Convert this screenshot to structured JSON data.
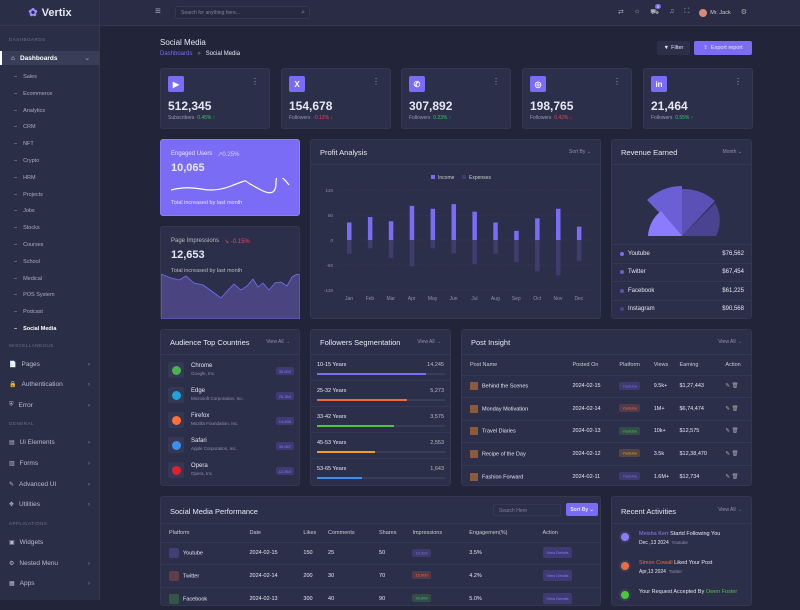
{
  "app": {
    "name": "Vertix"
  },
  "sidebar": {
    "sections": [
      "DASHBOARDS",
      "MISCELLANEOUS",
      "GENERAL",
      "APPLICATIONS"
    ],
    "dashboards_label": "Dashboards",
    "sub_items": [
      "Sales",
      "Ecommerce",
      "Analytics",
      "CRM",
      "NFT",
      "Crypto",
      "HRM",
      "Projects",
      "Jobs",
      "Stocks",
      "Courses",
      "School",
      "Medical",
      "POS System",
      "Podcast",
      "Social Media"
    ],
    "misc": [
      "Pages",
      "Authentication",
      "Error"
    ],
    "general": [
      "Ui Elements",
      "Forms",
      "Advanced UI",
      "Utilities"
    ],
    "apps": [
      "Widgets",
      "Nested Menu",
      "Apps"
    ]
  },
  "topbar": {
    "search_placeholder": "Search for anything here...",
    "cart_count": "5",
    "user": "Mr. Jack"
  },
  "page": {
    "title": "Social Media",
    "breadcrumb": [
      "Dashboards",
      "Social Media"
    ],
    "filter": "Filter",
    "export": "Export report"
  },
  "stats": [
    {
      "icon": "youtube-icon",
      "glyph": "▶",
      "value": "512,345",
      "label": "Subscribers",
      "change": "0.45% ↑",
      "dir": "up"
    },
    {
      "icon": "x-twitter-icon",
      "glyph": "X",
      "value": "154,678",
      "label": "Followers",
      "change": "-0.12% ↓",
      "dir": "down"
    },
    {
      "icon": "messenger-icon",
      "glyph": "✆",
      "value": "307,892",
      "label": "Followers",
      "change": "0.23% ↑",
      "dir": "up"
    },
    {
      "icon": "instagram-icon",
      "glyph": "◎",
      "value": "198,765",
      "label": "Followers",
      "change": "0.42% ↓",
      "dir": "down"
    },
    {
      "icon": "linkedin-icon",
      "glyph": "in",
      "value": "21,464",
      "label": "Followers",
      "change": "0.55% ↑",
      "dir": "up"
    }
  ],
  "engaged": {
    "title": "Engaged Users",
    "change": "↗0.25%",
    "value": "10,065",
    "note": "Total increased by last month"
  },
  "impressions": {
    "title": "Page Impressions",
    "change": "↘ -0.15%",
    "value": "12,653",
    "note": "Total increased by last month"
  },
  "chart_data": {
    "type": "bar",
    "title": "Profit Analysis",
    "sort": "Sort By",
    "categories": [
      "Jan",
      "Feb",
      "Mar",
      "Apr",
      "May",
      "Jun",
      "Jul",
      "Aug",
      "Sep",
      "Oct",
      "Nov",
      "Dec"
    ],
    "series": [
      {
        "name": "Income",
        "color": "#7b6cf6",
        "values": [
          42,
          55,
          45,
          82,
          75,
          86,
          68,
          42,
          22,
          52,
          75,
          32
        ]
      },
      {
        "name": "Expenses",
        "color": "#403d6e",
        "values": [
          -33,
          -20,
          -43,
          -63,
          -20,
          -32,
          -58,
          -33,
          -53,
          -75,
          -85,
          -50
        ]
      }
    ],
    "yticks": [
      "120",
      "60",
      "0",
      "-60",
      "-120"
    ],
    "ylim": [
      -120,
      120
    ]
  },
  "revenue": {
    "title": "Revenue Earned",
    "period": "Month",
    "items": [
      {
        "name": "Youtube",
        "value": "$76,562",
        "color": "#7b6cf6"
      },
      {
        "name": "Twitter",
        "value": "$67,454",
        "color": "#6b5fd6"
      },
      {
        "name": "Facebook",
        "value": "$61,225",
        "color": "#5a50b5"
      },
      {
        "name": "Instagram",
        "value": "$90,568",
        "color": "#4a4390"
      }
    ]
  },
  "countries": {
    "title": "Audience Top Countries",
    "view_all": "View All →",
    "items": [
      {
        "name": "Chrome",
        "sub": "Google, Inc.",
        "value": "35,502",
        "color": "#4caf50"
      },
      {
        "name": "Edge",
        "sub": "Microsoft Corporation, Inc.",
        "value": "25,364",
        "color": "#1fa3d8"
      },
      {
        "name": "Firefox",
        "sub": "Mozilla Foundation, Inc.",
        "value": "14,635",
        "color": "#ff7139"
      },
      {
        "name": "Safari",
        "sub": "Apple Corporation, Inc.",
        "value": "35,657",
        "color": "#3b8ff0"
      },
      {
        "name": "Opera",
        "sub": "Opera, Inc.",
        "value": "12,563",
        "color": "#e0202f"
      }
    ]
  },
  "followers": {
    "title": "Followers Segmentation",
    "view_all": "View All →",
    "items": [
      {
        "label": "10-15 Years",
        "value": "14,245",
        "pct": 85,
        "color": "#7b6cf6"
      },
      {
        "label": "25-32 Years",
        "value": "5,273",
        "pct": 70,
        "color": "#ef6a3f"
      },
      {
        "label": "33-42 Years",
        "value": "3,575",
        "pct": 60,
        "color": "#4cc63a"
      },
      {
        "label": "45-53 Years",
        "value": "2,553",
        "pct": 45,
        "color": "#f0a020"
      },
      {
        "label": "53-65 Years",
        "value": "1,643",
        "pct": 35,
        "color": "#3b8ff0"
      }
    ]
  },
  "posts": {
    "title": "Post Insight",
    "view_all": "View All →",
    "columns": [
      "Post Name",
      "Posted On",
      "Platform",
      "Views",
      "Earning",
      "Action"
    ],
    "rows": [
      {
        "name": "Behind the Scenes",
        "date": "2024-02-15",
        "platform": "Youtube",
        "pcolor": "#7b6cf6",
        "views": "9.5k+",
        "earning": "$1,27,443"
      },
      {
        "name": "Monday Motivation",
        "date": "2024-02-14",
        "platform": "Youtube",
        "pcolor": "#ef6a3f",
        "views": "1M+",
        "earning": "$6,74,474"
      },
      {
        "name": "Travel Diaries",
        "date": "2024-02-13",
        "platform": "Youtube",
        "pcolor": "#4cc63a",
        "views": "10k+",
        "earning": "$12,575"
      },
      {
        "name": "Recipe of the Day",
        "date": "2024-02-12",
        "platform": "Youtube",
        "pcolor": "#f0a020",
        "views": "3.5k",
        "earning": "$12,38,470"
      },
      {
        "name": "Fashion Forward",
        "date": "2024-02-11",
        "platform": "Youtube",
        "pcolor": "#7b6cf6",
        "views": "1.6M+",
        "earning": "$12,734"
      }
    ]
  },
  "performance": {
    "title": "Social Media Performance",
    "search_placeholder": "Search Here",
    "sort": "Sort By",
    "columns": [
      "Platform",
      "Date",
      "Likes",
      "Comments",
      "Shares",
      "Impressions",
      "Engagemen(%)",
      "Action"
    ],
    "rows": [
      {
        "platform": "Youtube",
        "date": "2024-02-15",
        "likes": "150",
        "comments": "25",
        "shares": "50",
        "impressions": "10,000",
        "color": "#7b6cf6",
        "eng": "3.5%",
        "action": "View Details"
      },
      {
        "platform": "Twitter",
        "date": "2024-02-14",
        "likes": "200",
        "comments": "30",
        "shares": "70",
        "impressions": "15,000",
        "color": "#ef6a3f",
        "eng": "4.2%",
        "action": "View Details"
      },
      {
        "platform": "Facebook",
        "date": "2024-02-13",
        "likes": "300",
        "comments": "40",
        "shares": "90",
        "impressions": "20,000",
        "color": "#4cc63a",
        "eng": "5.0%",
        "action": "View Details"
      }
    ]
  },
  "activities": {
    "title": "Recent Activities",
    "view_all": "View All →",
    "items": [
      {
        "who": "Meisha Kerr",
        "who_color": "#8b7cff",
        "text": " Startd Following You",
        "date": "Dec ,13 2024",
        "src": "Youtube"
      },
      {
        "who": "Simon Cowall",
        "who_color": "#ef6a3f",
        "text": " Liked Your Post",
        "date": "Apr,13 2024",
        "src": "Twitter"
      },
      {
        "pre": "Your Request Accepted By ",
        "who": "Owen Foster",
        "who_color": "#4cc63a"
      }
    ]
  }
}
